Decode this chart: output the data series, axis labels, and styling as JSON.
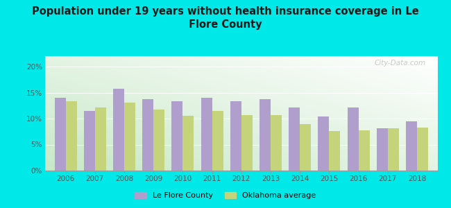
{
  "title": "Population under 19 years without health insurance coverage in Le\nFlore County",
  "years": [
    2006,
    2007,
    2008,
    2009,
    2010,
    2011,
    2012,
    2013,
    2014,
    2015,
    2016,
    2017,
    2018
  ],
  "le_flore": [
    14.0,
    11.5,
    15.7,
    13.7,
    13.3,
    14.0,
    13.3,
    13.8,
    12.2,
    10.4,
    12.1,
    8.2,
    9.5
  ],
  "ok_avg": [
    13.3,
    12.2,
    13.1,
    11.8,
    10.5,
    11.5,
    10.7,
    10.7,
    9.0,
    7.6,
    7.7,
    8.2,
    8.3
  ],
  "le_flore_color": "#b09fcc",
  "ok_avg_color": "#c5d47a",
  "bg_color": "#00e8e8",
  "ylim": [
    0,
    22
  ],
  "yticks": [
    0,
    5,
    10,
    15,
    20
  ],
  "ytick_labels": [
    "0%",
    "5%",
    "10%",
    "15%",
    "20%"
  ],
  "bar_width": 0.38,
  "legend_le_flore": "Le Flore County",
  "legend_ok": "Oklahoma average",
  "watermark": "City-Data.com"
}
